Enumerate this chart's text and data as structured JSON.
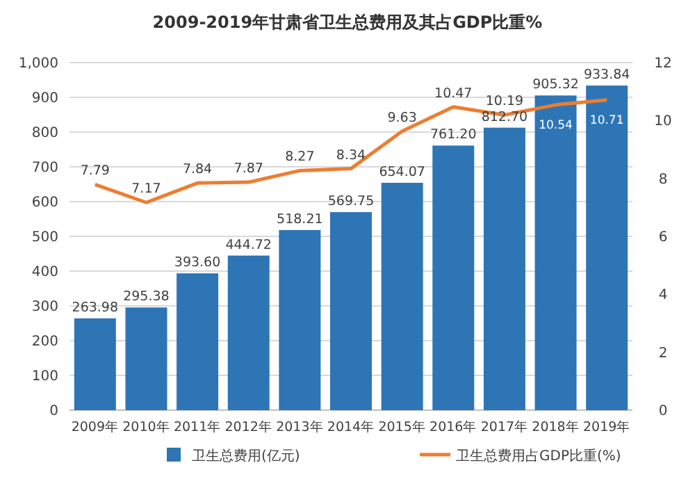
{
  "chart_data": {
    "type": "bar",
    "title": "2009-2019年甘肃省卫生总费用及其占GDP比重%",
    "categories": [
      "2009年",
      "2010年",
      "2011年",
      "2012年",
      "2013年",
      "2014年",
      "2015年",
      "2016年",
      "2017年",
      "2018年",
      "2019年"
    ],
    "series": [
      {
        "name": "卫生总费用(亿元)",
        "color": "#2e75b6",
        "values": [
          263.98,
          295.38,
          393.6,
          444.72,
          518.21,
          569.75,
          654.07,
          761.2,
          812.7,
          905.32,
          933.84
        ],
        "value_labels": [
          "263.98",
          "295.38",
          "393.60",
          "444.72",
          "518.21",
          "569.75",
          "654.07",
          "761.20",
          "812.70",
          "905.32",
          "933.84"
        ]
      },
      {
        "name": "卫生总费用占GDP比重(%)",
        "type": "line",
        "axis": "y2",
        "color": "#ed7d31",
        "values": [
          7.79,
          7.17,
          7.84,
          7.87,
          8.27,
          8.34,
          9.63,
          10.47,
          10.19,
          10.54,
          10.71
        ],
        "value_labels": [
          "7.79",
          "7.17",
          "7.84",
          "7.87",
          "8.27",
          "8.34",
          "9.63",
          "10.47",
          "10.19",
          "10.54",
          "10.71"
        ]
      }
    ],
    "ylim": [
      0,
      1000
    ],
    "yticks": [
      0,
      100,
      200,
      300,
      400,
      500,
      600,
      700,
      800,
      900,
      {
        "value": 1000,
        "label": "1,000"
      }
    ],
    "y2lim": [
      0,
      12
    ],
    "y2ticks": [
      0,
      2,
      4,
      6,
      8,
      10,
      12
    ],
    "grid": "y",
    "legend": "bottom",
    "marker": "none"
  }
}
